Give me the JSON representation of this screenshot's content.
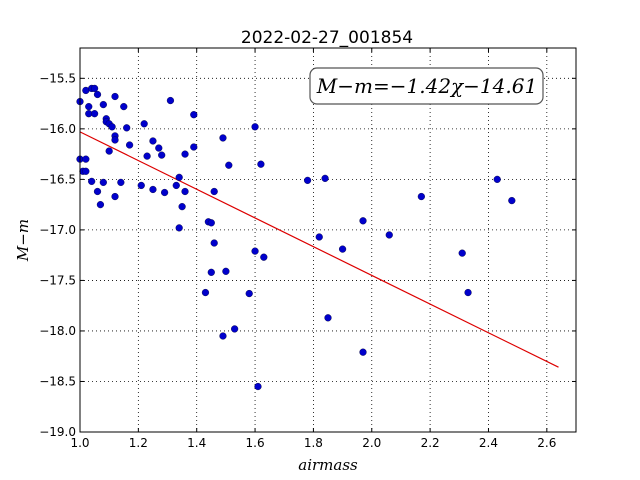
{
  "chart_data": {
    "type": "scatter",
    "title": "2022-02-27_001854",
    "xlabel": "airmass",
    "ylabel": "M−m",
    "xlim": [
      1.0,
      2.7
    ],
    "ylim": [
      -19.0,
      -15.2
    ],
    "y_inverted": true,
    "grid": true,
    "x_ticks": [
      1.0,
      1.2,
      1.4,
      1.6,
      1.8,
      2.0,
      2.2,
      2.4,
      2.6
    ],
    "x_tick_labels": [
      "1.0",
      "1.2",
      "1.4",
      "1.6",
      "1.8",
      "2.0",
      "2.2",
      "2.4",
      "2.6"
    ],
    "y_ticks": [
      -15.5,
      -16.0,
      -16.5,
      -17.0,
      -17.5,
      -18.0,
      -18.5,
      -19.0
    ],
    "y_tick_labels": [
      "−15.5",
      "−16.0",
      "−16.5",
      "−17.0",
      "−17.5",
      "−18.0",
      "−18.5",
      "−19.0"
    ],
    "annotation": "M−m=−1.42χ−14.61",
    "marker_color": "#0000cc",
    "fit_color": "#dd0000",
    "fit_line": {
      "slope": -1.42,
      "intercept": -14.61,
      "x_range": [
        1.0,
        2.64
      ]
    },
    "points": [
      [
        1.0,
        -15.73
      ],
      [
        1.0,
        -16.3
      ],
      [
        1.01,
        -16.42
      ],
      [
        1.02,
        -15.62
      ],
      [
        1.02,
        -16.3
      ],
      [
        1.02,
        -16.42
      ],
      [
        1.03,
        -15.78
      ],
      [
        1.03,
        -15.85
      ],
      [
        1.04,
        -15.6
      ],
      [
        1.04,
        -16.52
      ],
      [
        1.05,
        -15.6
      ],
      [
        1.05,
        -15.85
      ],
      [
        1.06,
        -15.66
      ],
      [
        1.06,
        -16.62
      ],
      [
        1.07,
        -16.75
      ],
      [
        1.08,
        -15.76
      ],
      [
        1.08,
        -16.53
      ],
      [
        1.09,
        -15.9
      ],
      [
        1.09,
        -15.93
      ],
      [
        1.1,
        -15.95
      ],
      [
        1.1,
        -16.22
      ],
      [
        1.11,
        -15.98
      ],
      [
        1.12,
        -15.68
      ],
      [
        1.12,
        -16.07
      ],
      [
        1.12,
        -16.11
      ],
      [
        1.12,
        -16.67
      ],
      [
        1.14,
        -16.53
      ],
      [
        1.15,
        -15.78
      ],
      [
        1.16,
        -15.99
      ],
      [
        1.17,
        -16.16
      ],
      [
        1.21,
        -16.56
      ],
      [
        1.22,
        -15.95
      ],
      [
        1.23,
        -16.27
      ],
      [
        1.25,
        -16.12
      ],
      [
        1.25,
        -16.6
      ],
      [
        1.27,
        -16.19
      ],
      [
        1.28,
        -16.26
      ],
      [
        1.29,
        -16.63
      ],
      [
        1.31,
        -15.72
      ],
      [
        1.33,
        -16.56
      ],
      [
        1.34,
        -16.48
      ],
      [
        1.34,
        -16.98
      ],
      [
        1.35,
        -16.77
      ],
      [
        1.36,
        -16.25
      ],
      [
        1.36,
        -16.62
      ],
      [
        1.39,
        -15.86
      ],
      [
        1.39,
        -16.18
      ],
      [
        1.43,
        -17.62
      ],
      [
        1.44,
        -16.92
      ],
      [
        1.45,
        -16.93
      ],
      [
        1.45,
        -17.42
      ],
      [
        1.46,
        -17.13
      ],
      [
        1.46,
        -16.62
      ],
      [
        1.49,
        -16.09
      ],
      [
        1.49,
        -18.05
      ],
      [
        1.5,
        -17.41
      ],
      [
        1.51,
        -16.36
      ],
      [
        1.53,
        -17.98
      ],
      [
        1.58,
        -17.63
      ],
      [
        1.6,
        -15.98
      ],
      [
        1.6,
        -17.21
      ],
      [
        1.61,
        -18.55
      ],
      [
        1.62,
        -16.35
      ],
      [
        1.63,
        -17.27
      ],
      [
        1.78,
        -16.51
      ],
      [
        1.82,
        -17.07
      ],
      [
        1.84,
        -16.49
      ],
      [
        1.85,
        -17.87
      ],
      [
        1.9,
        -17.19
      ],
      [
        1.97,
        -16.91
      ],
      [
        1.97,
        -18.21
      ],
      [
        2.06,
        -17.05
      ],
      [
        2.17,
        -16.67
      ],
      [
        2.31,
        -17.23
      ],
      [
        2.33,
        -17.62
      ],
      [
        2.43,
        -16.5
      ],
      [
        2.48,
        -16.71
      ]
    ]
  }
}
